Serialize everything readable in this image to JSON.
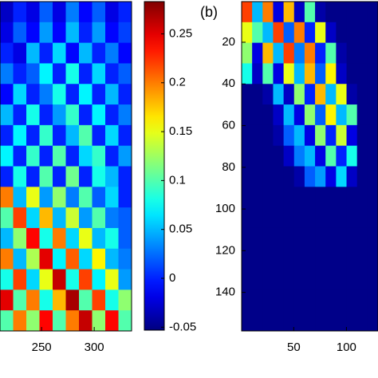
{
  "chart_data": [
    {
      "type": "heatmap",
      "xlim": [
        210.5,
        335.5
      ],
      "xticks": [
        250,
        300
      ],
      "clim": [
        -0.053,
        0.283
      ],
      "cticks": [
        -0.05,
        0,
        0.05,
        0.1,
        0.15,
        0.2,
        0.25
      ],
      "values": [
        [
          -0.03,
          0.0,
          -0.02,
          0.02,
          -0.02,
          0.03,
          -0.01,
          0.02,
          -0.02,
          0.0
        ],
        [
          -0.02,
          0.02,
          -0.01,
          0.04,
          -0.01,
          0.05,
          0.0,
          0.04,
          -0.01,
          0.01
        ],
        [
          0.0,
          -0.02,
          0.05,
          0.0,
          0.06,
          -0.01,
          0.05,
          0.0,
          0.03,
          -0.01
        ],
        [
          0.03,
          0.0,
          0.02,
          0.07,
          0.0,
          0.08,
          0.0,
          0.06,
          0.0,
          0.02
        ],
        [
          -0.01,
          0.06,
          0.0,
          0.03,
          0.08,
          0.0,
          0.07,
          0.0,
          0.05,
          0.0
        ],
        [
          0.05,
          0.0,
          0.08,
          0.0,
          0.04,
          0.09,
          0.0,
          0.07,
          0.0,
          0.03
        ],
        [
          0.0,
          0.07,
          0.0,
          0.09,
          0.0,
          0.05,
          0.1,
          0.0,
          0.06,
          0.0
        ],
        [
          0.07,
          0.0,
          0.09,
          0.0,
          0.1,
          0.0,
          0.06,
          0.09,
          0.0,
          0.04
        ],
        [
          0.0,
          0.08,
          0.0,
          0.1,
          0.0,
          0.11,
          0.0,
          0.08,
          0.05,
          0.0
        ],
        [
          0.2,
          0.05,
          0.15,
          0.04,
          0.12,
          0.03,
          0.1,
          0.02,
          0.06,
          0.0
        ],
        [
          0.1,
          0.22,
          0.06,
          0.18,
          0.05,
          0.14,
          0.04,
          0.1,
          0.03,
          0.02
        ],
        [
          0.05,
          0.12,
          0.24,
          0.08,
          0.2,
          0.06,
          0.15,
          0.05,
          0.08,
          0.02
        ],
        [
          0.2,
          0.05,
          0.13,
          0.25,
          0.07,
          0.21,
          0.06,
          0.16,
          0.05,
          0.03
        ],
        [
          0.08,
          0.22,
          0.06,
          0.15,
          0.26,
          0.08,
          0.22,
          0.07,
          0.15,
          0.04
        ],
        [
          0.25,
          0.1,
          0.2,
          0.08,
          0.18,
          0.27,
          0.1,
          0.22,
          0.08,
          0.12
        ],
        [
          0.1,
          0.2,
          0.12,
          0.24,
          0.1,
          0.2,
          0.26,
          0.12,
          0.24,
          0.1
        ]
      ]
    },
    {
      "type": "heatmap",
      "label": "(b)",
      "xlim": [
        0.5,
        130
      ],
      "xticks": [
        50,
        100
      ],
      "ylim": [
        0.5,
        158.5
      ],
      "yticks": [
        20,
        40,
        60,
        80,
        100,
        120,
        140
      ],
      "values": [
        [
          0.22,
          0.05,
          0.2,
          -0.02,
          0.18,
          -0.03,
          0.1,
          -0.04,
          -0.05,
          -0.05,
          -0.05,
          -0.05,
          -0.05
        ],
        [
          0.15,
          0.1,
          0.05,
          0.22,
          0.02,
          0.2,
          0.0,
          0.15,
          -0.03,
          -0.05,
          -0.05,
          -0.05,
          -0.05
        ],
        [
          0.12,
          -0.02,
          0.18,
          0.05,
          0.22,
          0.03,
          0.2,
          0.0,
          0.1,
          -0.04,
          -0.05,
          -0.05,
          -0.05
        ],
        [
          0.08,
          -0.03,
          0.1,
          -0.02,
          0.15,
          0.05,
          0.18,
          0.02,
          0.16,
          -0.03,
          -0.05,
          -0.05,
          -0.05
        ],
        [
          -0.05,
          -0.05,
          -0.04,
          0.05,
          -0.03,
          0.12,
          0.0,
          0.18,
          0.05,
          0.15,
          -0.04,
          -0.05,
          -0.05
        ],
        [
          -0.05,
          -0.05,
          -0.05,
          -0.03,
          0.05,
          -0.02,
          0.12,
          0.02,
          0.16,
          0.05,
          0.1,
          -0.05,
          -0.05
        ],
        [
          -0.05,
          -0.05,
          -0.05,
          -0.04,
          0.02,
          0.05,
          -0.02,
          0.12,
          0.0,
          0.14,
          -0.02,
          -0.05,
          -0.05
        ],
        [
          -0.05,
          -0.05,
          -0.05,
          -0.05,
          -0.03,
          0.03,
          0.05,
          -0.02,
          0.1,
          0.0,
          0.08,
          -0.05,
          -0.05
        ],
        [
          -0.05,
          -0.05,
          -0.05,
          -0.05,
          -0.05,
          -0.04,
          0.02,
          0.04,
          -0.02,
          0.06,
          -0.03,
          -0.05,
          -0.05
        ],
        [
          -0.05,
          -0.05,
          -0.05,
          -0.05,
          -0.05,
          -0.05,
          -0.05,
          -0.05,
          -0.05,
          -0.05,
          -0.05,
          -0.05,
          -0.05
        ],
        [
          -0.05,
          -0.05,
          -0.05,
          -0.05,
          -0.05,
          -0.05,
          -0.05,
          -0.05,
          -0.05,
          -0.05,
          -0.05,
          -0.05,
          -0.05
        ],
        [
          -0.05,
          -0.05,
          -0.05,
          -0.05,
          -0.05,
          -0.05,
          -0.05,
          -0.05,
          -0.05,
          -0.05,
          -0.05,
          -0.05,
          -0.05
        ],
        [
          -0.05,
          -0.05,
          -0.05,
          -0.05,
          -0.05,
          -0.05,
          -0.05,
          -0.05,
          -0.05,
          -0.05,
          -0.05,
          -0.05,
          -0.05
        ],
        [
          -0.05,
          -0.05,
          -0.05,
          -0.05,
          -0.05,
          -0.05,
          -0.05,
          -0.05,
          -0.05,
          -0.05,
          -0.05,
          -0.05,
          -0.05
        ],
        [
          -0.05,
          -0.05,
          -0.05,
          -0.05,
          -0.05,
          -0.05,
          -0.05,
          -0.05,
          -0.05,
          -0.05,
          -0.05,
          -0.05,
          -0.05
        ],
        [
          -0.05,
          -0.05,
          -0.05,
          -0.05,
          -0.05,
          -0.05,
          -0.05,
          -0.05,
          -0.05,
          -0.05,
          -0.05,
          -0.05,
          -0.05
        ]
      ]
    }
  ]
}
